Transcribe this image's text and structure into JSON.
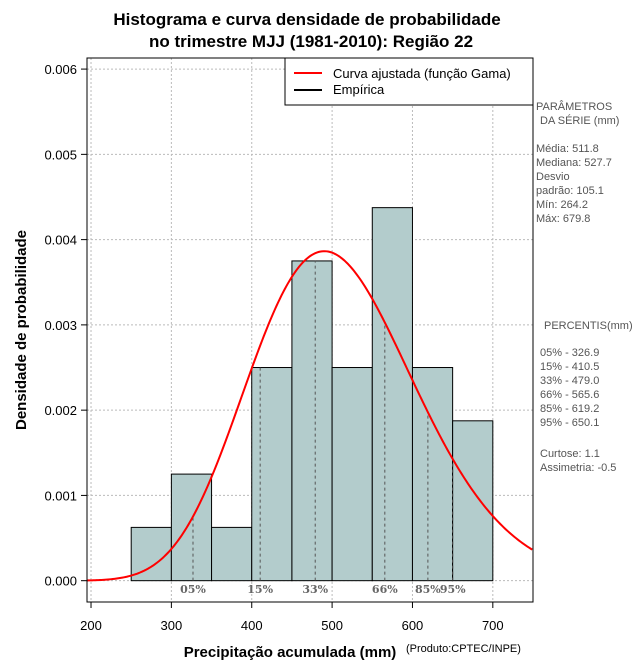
{
  "chart_data": {
    "type": "histogram",
    "title_lines": [
      "Histograma e curva densidade de probabilidade",
      "no trimestre MJJ (1981-2010): Região 22"
    ],
    "xlabel": "Precipitação acumulada (mm)",
    "ylabel": "Densidade de probabilidade",
    "credit": "(Produto:CPTEC/INPE)",
    "xlim": [
      195,
      750
    ],
    "ylim": [
      -0.00025,
      0.00613
    ],
    "x_ticks": [
      200,
      300,
      400,
      500,
      600,
      700
    ],
    "y_ticks": [
      0.0,
      0.001,
      0.002,
      0.003,
      0.004,
      0.005,
      0.006
    ],
    "y_tick_labels": [
      "0.000",
      "0.001",
      "0.002",
      "0.003",
      "0.004",
      "0.005",
      "0.006"
    ],
    "grid": true,
    "bins": [
      {
        "from": 250,
        "to": 300,
        "density": 0.000625
      },
      {
        "from": 300,
        "to": 350,
        "density": 0.00125
      },
      {
        "from": 350,
        "to": 400,
        "density": 0.000625
      },
      {
        "from": 400,
        "to": 450,
        "density": 0.0025
      },
      {
        "from": 450,
        "to": 500,
        "density": 0.00375
      },
      {
        "from": 500,
        "to": 550,
        "density": 0.0025
      },
      {
        "from": 550,
        "to": 600,
        "density": 0.004375
      },
      {
        "from": 600,
        "to": 650,
        "density": 0.0025
      },
      {
        "from": 650,
        "to": 700,
        "density": 0.001875
      }
    ],
    "gamma_fit": {
      "mean": 511.8,
      "sd": 105.1
    },
    "percentiles": [
      {
        "label": "05%",
        "value": 326.9
      },
      {
        "label": "15%",
        "value": 410.5
      },
      {
        "label": "33%",
        "value": 479.0
      },
      {
        "label": "66%",
        "value": 565.6
      },
      {
        "label": "85%",
        "value": 619.2
      },
      {
        "label": "95%",
        "value": 650.1
      }
    ],
    "legend": {
      "position": "top-right",
      "entries": [
        {
          "label": "Curva ajustada (função Gama)",
          "color": "#ff0000"
        },
        {
          "label": "Empírica",
          "color": "#000000"
        }
      ]
    },
    "colors": {
      "bar_fill": "#b3cccc",
      "curve": "#ff0000",
      "percentile_line": "#555555",
      "grid": "#bbbbbb"
    }
  },
  "side_panel": {
    "params_title_1": "PARÂMETROS",
    "params_title_2": "DA SÉRIE (mm)",
    "media": "Média:  511.8",
    "mediana": "Mediana:  527.7",
    "desvio_1": "Desvio",
    "desvio_2": "padrão:  105.1",
    "min": "Mín:  264.2",
    "max": "Máx:  679.8",
    "percentis_title": "PERCENTIS(mm)",
    "p05": "05% -  326.9",
    "p15": "15% -  410.5",
    "p33": "33% -  479.0",
    "p66": "66% -  565.6",
    "p85": "85% -  619.2",
    "p95": "95% -  650.1",
    "curtose": "Curtose:  1.1",
    "assimetria": "Assimetria:  -0.5"
  }
}
